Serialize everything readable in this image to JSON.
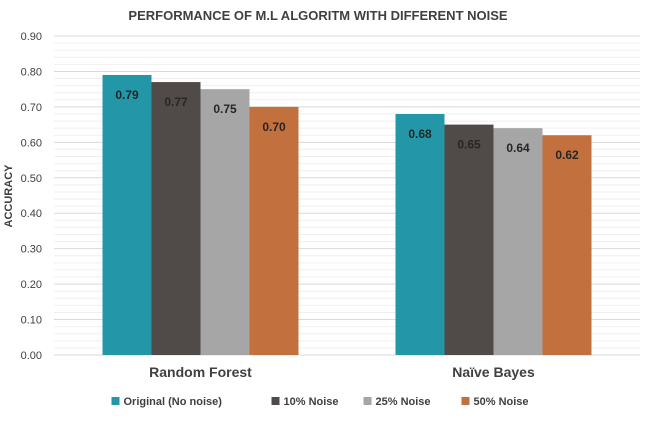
{
  "chart_data": {
    "type": "bar",
    "title": "PERFORMANCE OF M.L ALGORITM WITH DIFFERENT NOISE",
    "xlabel": "",
    "ylabel": "ACCURACY",
    "categories": [
      "Random Forest",
      "Naïve Bayes"
    ],
    "series": [
      {
        "name": "Original (No noise)",
        "values": [
          0.79,
          0.68
        ],
        "labels": [
          "0.79",
          "0.68"
        ],
        "color": "#2397a7"
      },
      {
        "name": "10% Noise",
        "values": [
          0.77,
          0.65
        ],
        "labels": [
          "0.77",
          "0.65"
        ],
        "color": "#504b49"
      },
      {
        "name": "25% Noise",
        "values": [
          0.75,
          0.64
        ],
        "labels": [
          "0.75",
          "0.64"
        ],
        "color": "#a6a6a6"
      },
      {
        "name": "50% Noise",
        "values": [
          0.7,
          0.62
        ],
        "labels": [
          "0.70",
          "0.62"
        ],
        "color": "#c3703f"
      }
    ],
    "ylim": [
      0,
      0.9
    ],
    "yticks": [
      "0.00",
      "0.10",
      "0.20",
      "0.30",
      "0.40",
      "0.50",
      "0.60",
      "0.70",
      "0.80",
      "0.90"
    ],
    "grid": true,
    "legend_position": "bottom"
  }
}
